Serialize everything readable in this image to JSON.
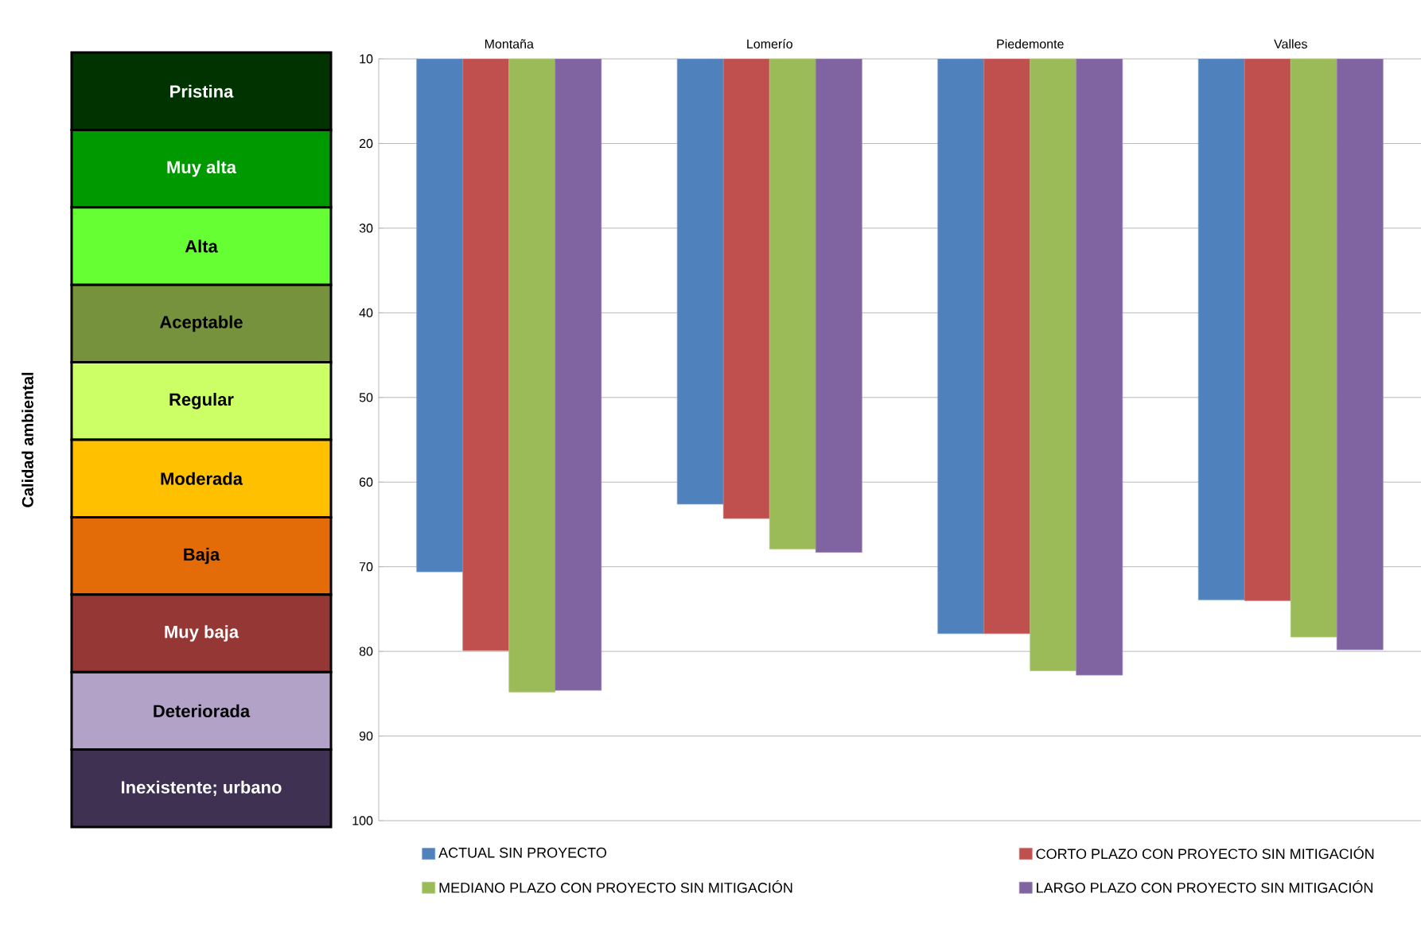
{
  "chart_data": [
    {
      "type": "other",
      "ylabel": "Calidad ambiental",
      "categories": [
        "Pristina",
        "Muy alta",
        "Alta",
        "Aceptable",
        "Regular",
        "Moderada",
        "Baja",
        "Muy baja",
        "Deteriorada",
        "Inexistente; urbano"
      ],
      "colors": [
        "#003300",
        "#009900",
        "#66ff33",
        "#76923c",
        "#ccff66",
        "#ffc000",
        "#e36c09",
        "#953735",
        "#b2a2c7",
        "#3f3151"
      ]
    },
    {
      "type": "bar",
      "categories": [
        "Montaña",
        "Lomerío",
        "Piedemonte",
        "Valles"
      ],
      "ylim": [
        100,
        10
      ],
      "yticks": [
        10,
        20,
        30,
        40,
        50,
        60,
        70,
        80,
        90,
        100
      ],
      "grid": "y",
      "legend": "bottom",
      "series": [
        {
          "name": "ACTUAL SIN PROYECTO",
          "color": "#4f81bd",
          "values": [
            70.6,
            62.6,
            77.9,
            73.9
          ]
        },
        {
          "name": "CORTO PLAZO CON PROYECTO SIN MITIGACIÓN",
          "color": "#c0504d",
          "values": [
            79.9,
            64.3,
            77.9,
            74.0
          ]
        },
        {
          "name": "MEDIANO PLAZO CON PROYECTO SIN MITIGACIÓN",
          "color": "#9bbb59",
          "values": [
            84.8,
            67.9,
            82.3,
            78.3
          ]
        },
        {
          "name": "LARGO PLAZO CON PROYECTO SIN MITIGACIÓN",
          "color": "#8064a2",
          "values": [
            84.6,
            68.3,
            82.8,
            79.8
          ]
        }
      ]
    }
  ]
}
